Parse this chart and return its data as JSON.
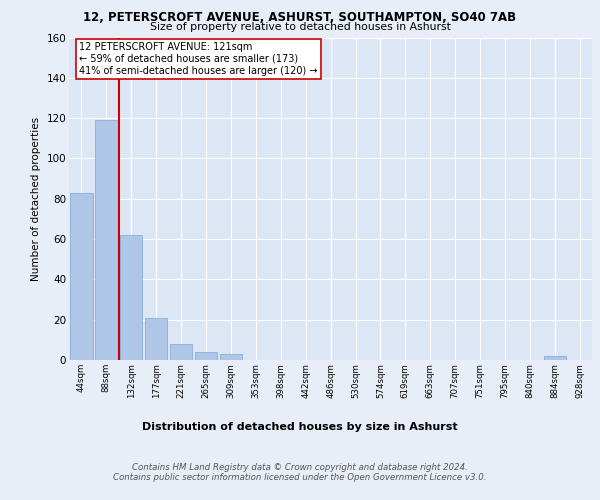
{
  "title_line1": "12, PETERSCROFT AVENUE, ASHURST, SOUTHAMPTON, SO40 7AB",
  "title_line2": "Size of property relative to detached houses in Ashurst",
  "xlabel": "Distribution of detached houses by size in Ashurst",
  "ylabel": "Number of detached properties",
  "categories": [
    "44sqm",
    "88sqm",
    "132sqm",
    "177sqm",
    "221sqm",
    "265sqm",
    "309sqm",
    "353sqm",
    "398sqm",
    "442sqm",
    "486sqm",
    "530sqm",
    "574sqm",
    "619sqm",
    "663sqm",
    "707sqm",
    "751sqm",
    "795sqm",
    "840sqm",
    "884sqm",
    "928sqm"
  ],
  "values": [
    83,
    119,
    62,
    21,
    8,
    4,
    3,
    0,
    0,
    0,
    0,
    0,
    0,
    0,
    0,
    0,
    0,
    0,
    0,
    2,
    0
  ],
  "bar_color": "#aec6e8",
  "bar_edge_color": "#7aaad0",
  "vline_pos": 1.5,
  "vline_color": "#cc0000",
  "annotation_text": "12 PETERSCROFT AVENUE: 121sqm\n← 59% of detached houses are smaller (173)\n41% of semi-detached houses are larger (120) →",
  "annotation_box_color": "#ffffff",
  "annotation_box_edge": "#cc0000",
  "ylim": [
    0,
    160
  ],
  "yticks": [
    0,
    20,
    40,
    60,
    80,
    100,
    120,
    140,
    160
  ],
  "footer": "Contains HM Land Registry data © Crown copyright and database right 2024.\nContains public sector information licensed under the Open Government Licence v3.0.",
  "bg_color": "#e8eef7",
  "plot_bg_color": "#dce6f5",
  "grid_color": "#ffffff"
}
